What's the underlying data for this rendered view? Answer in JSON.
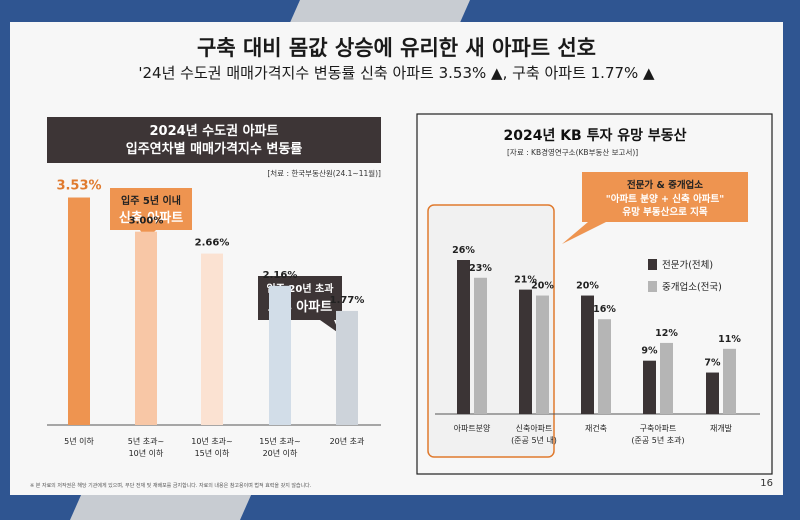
{
  "header": {
    "title": "구축 대비 몸값 상승에 유리한 새 아파트 선호",
    "subtitle": "'24년 수도권 매매가격지수 변동률 신축 아파트 3.53% ▲, 구축 아파트 1.77% ▲"
  },
  "page_number": "16",
  "footnote": "※ 본 자료의 저작권은 해당 기관에게 있으며, 무단 전재 및 재배포를 금지합니다. 자료의 내용은 참고용이며 법적 효력을 갖지 않습니다.",
  "left_panel": {
    "title_line1": "2024년 수도권 아파트",
    "title_line2": "입주연차별 매매가격지수 변동률",
    "source": "[처료 : 한국부동산원(24.1~11월)]",
    "callout_new_line1": "입주 5년 이내",
    "callout_new_line2": "신축 아파트",
    "callout_old_line1": "입주 20년 초과",
    "callout_old_line2": "노후 아파트"
  },
  "right_panel": {
    "title": "2024년 KB 투자 유망 부동산",
    "source": "[자료 : KB경영연구소(KB부동산 보고서)]",
    "callout_line1": "전문가 & 중개업소",
    "callout_line2": "\"아파트 분양 + 신축 아파트\"",
    "callout_line3": "유망 부동산으로 지목"
  },
  "chart_data": [
    {
      "type": "bar",
      "title": "2024년 수도권 아파트 입주연차별 매매가격지수 변동률",
      "categories": [
        [
          "5년 이하"
        ],
        [
          "5년 초과~",
          "10년 이하"
        ],
        [
          "10년 초과~",
          "15년 이하"
        ],
        [
          "15년 초과~",
          "20년 이하"
        ],
        [
          "20년 초과"
        ]
      ],
      "values": [
        3.53,
        3.0,
        2.66,
        2.16,
        1.77
      ],
      "value_labels": [
        "3.53%",
        "3.00%",
        "2.66%",
        "2.16%",
        "1.77%"
      ],
      "ylim": [
        0,
        4.5
      ],
      "colors": [
        "#ee9450",
        "#f8c7a6",
        "#fbe2d2",
        "#d2dde8",
        "#cdd3da"
      ],
      "label_colors": [
        "#e07a2e",
        "#222222",
        "#222222",
        "#222222",
        "#222222"
      ]
    },
    {
      "type": "bar",
      "title": "2024년 KB 투자 유망 부동산",
      "categories": [
        [
          "아파트분양"
        ],
        [
          "신축아파트",
          "(준공 5년 내)"
        ],
        [
          "재건축"
        ],
        [
          "구축아파트",
          "(준공 5년 초과)"
        ],
        [
          "재개발"
        ]
      ],
      "series": [
        {
          "name": "전문가(전체)",
          "values": [
            26,
            21,
            20,
            9,
            7
          ],
          "labels": [
            "26%",
            "21%",
            "20%",
            "9%",
            "7%"
          ],
          "color": "#3b3435"
        },
        {
          "name": "중개업소(전국)",
          "values": [
            23,
            20,
            16,
            12,
            11
          ],
          "labels": [
            "23%",
            "20%",
            "16%",
            "12%",
            "11%"
          ],
          "color": "#b5b5b5"
        }
      ],
      "ylim": [
        0,
        32
      ],
      "legend": "right"
    }
  ]
}
